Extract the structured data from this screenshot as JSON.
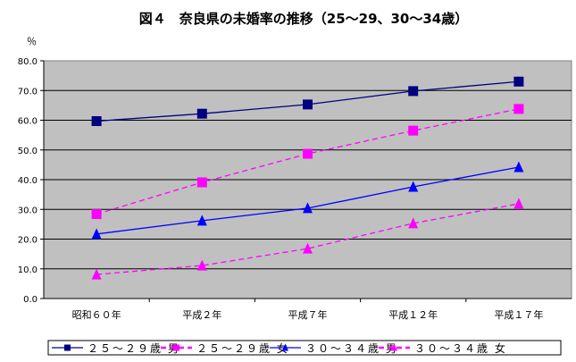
{
  "chart_data": {
    "type": "line",
    "title": "図４　奈良県の未婚率の推移（25～29、30～34歳）",
    "ylabel": "％",
    "xlabel": "",
    "categories": [
      "昭和６０年",
      "平成２年",
      "平成７年",
      "平成１２年",
      "平成１７年"
    ],
    "ylim": [
      0,
      80
    ],
    "yticks": [
      "0.0",
      "10.0",
      "20.0",
      "30.0",
      "40.0",
      "50.0",
      "60.0",
      "70.0",
      "80.0"
    ],
    "grid": true,
    "legend_position": "bottom",
    "series": [
      {
        "name": "２５～２９歳 男",
        "values": [
          59.7,
          62.2,
          65.3,
          69.8,
          73.0
        ],
        "color": "#000080",
        "marker": "square",
        "dash": false
      },
      {
        "name": "２５～２９歳 女",
        "values": [
          28.4,
          39.1,
          48.7,
          56.5,
          63.8
        ],
        "color": "#ff00ff",
        "marker": "square",
        "dash": true
      },
      {
        "name": "３０～３４歳 男",
        "values": [
          21.7,
          26.2,
          30.4,
          37.6,
          44.2
        ],
        "color": "#0000ff",
        "marker": "triangle",
        "dash": false
      },
      {
        "name": "３０～３４歳 女",
        "values": [
          8.1,
          11.1,
          16.8,
          25.3,
          31.9
        ],
        "color": "#ff00ff",
        "marker": "triangle",
        "dash": true
      }
    ]
  }
}
